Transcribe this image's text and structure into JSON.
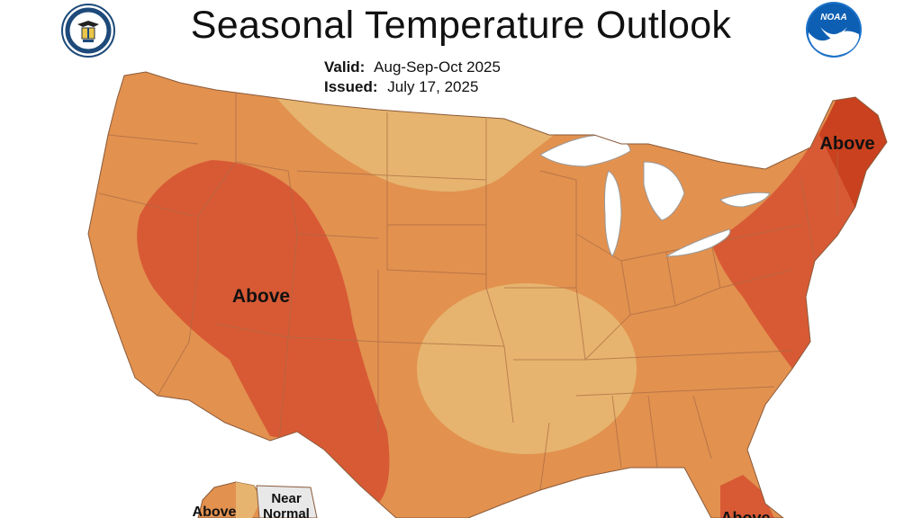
{
  "header": {
    "title": "Seasonal Temperature Outlook",
    "valid_label": "Valid:",
    "valid_value": "Aug-Sep-Oct 2025",
    "issued_label": "Issued:",
    "issued_value": "July 17, 2025"
  },
  "logos": {
    "left": "department-of-commerce-seal",
    "right": "noaa-logo",
    "noaa_text": "NOAA"
  },
  "map": {
    "labels": {
      "west": "Above",
      "northeast": "Above",
      "alaska": "Above",
      "alaska_near_normal_1": "Near",
      "alaska_near_normal_2": "Normal",
      "florida": "Above"
    },
    "colors": {
      "above_low": "#E2914F",
      "above_lightest": "#E6B46E",
      "above_high": "#D85A35",
      "above_highest": "#C9411E",
      "near_normal": "#E8E8E8",
      "lakes": "#ffffff",
      "borders": "#a86a44"
    }
  }
}
